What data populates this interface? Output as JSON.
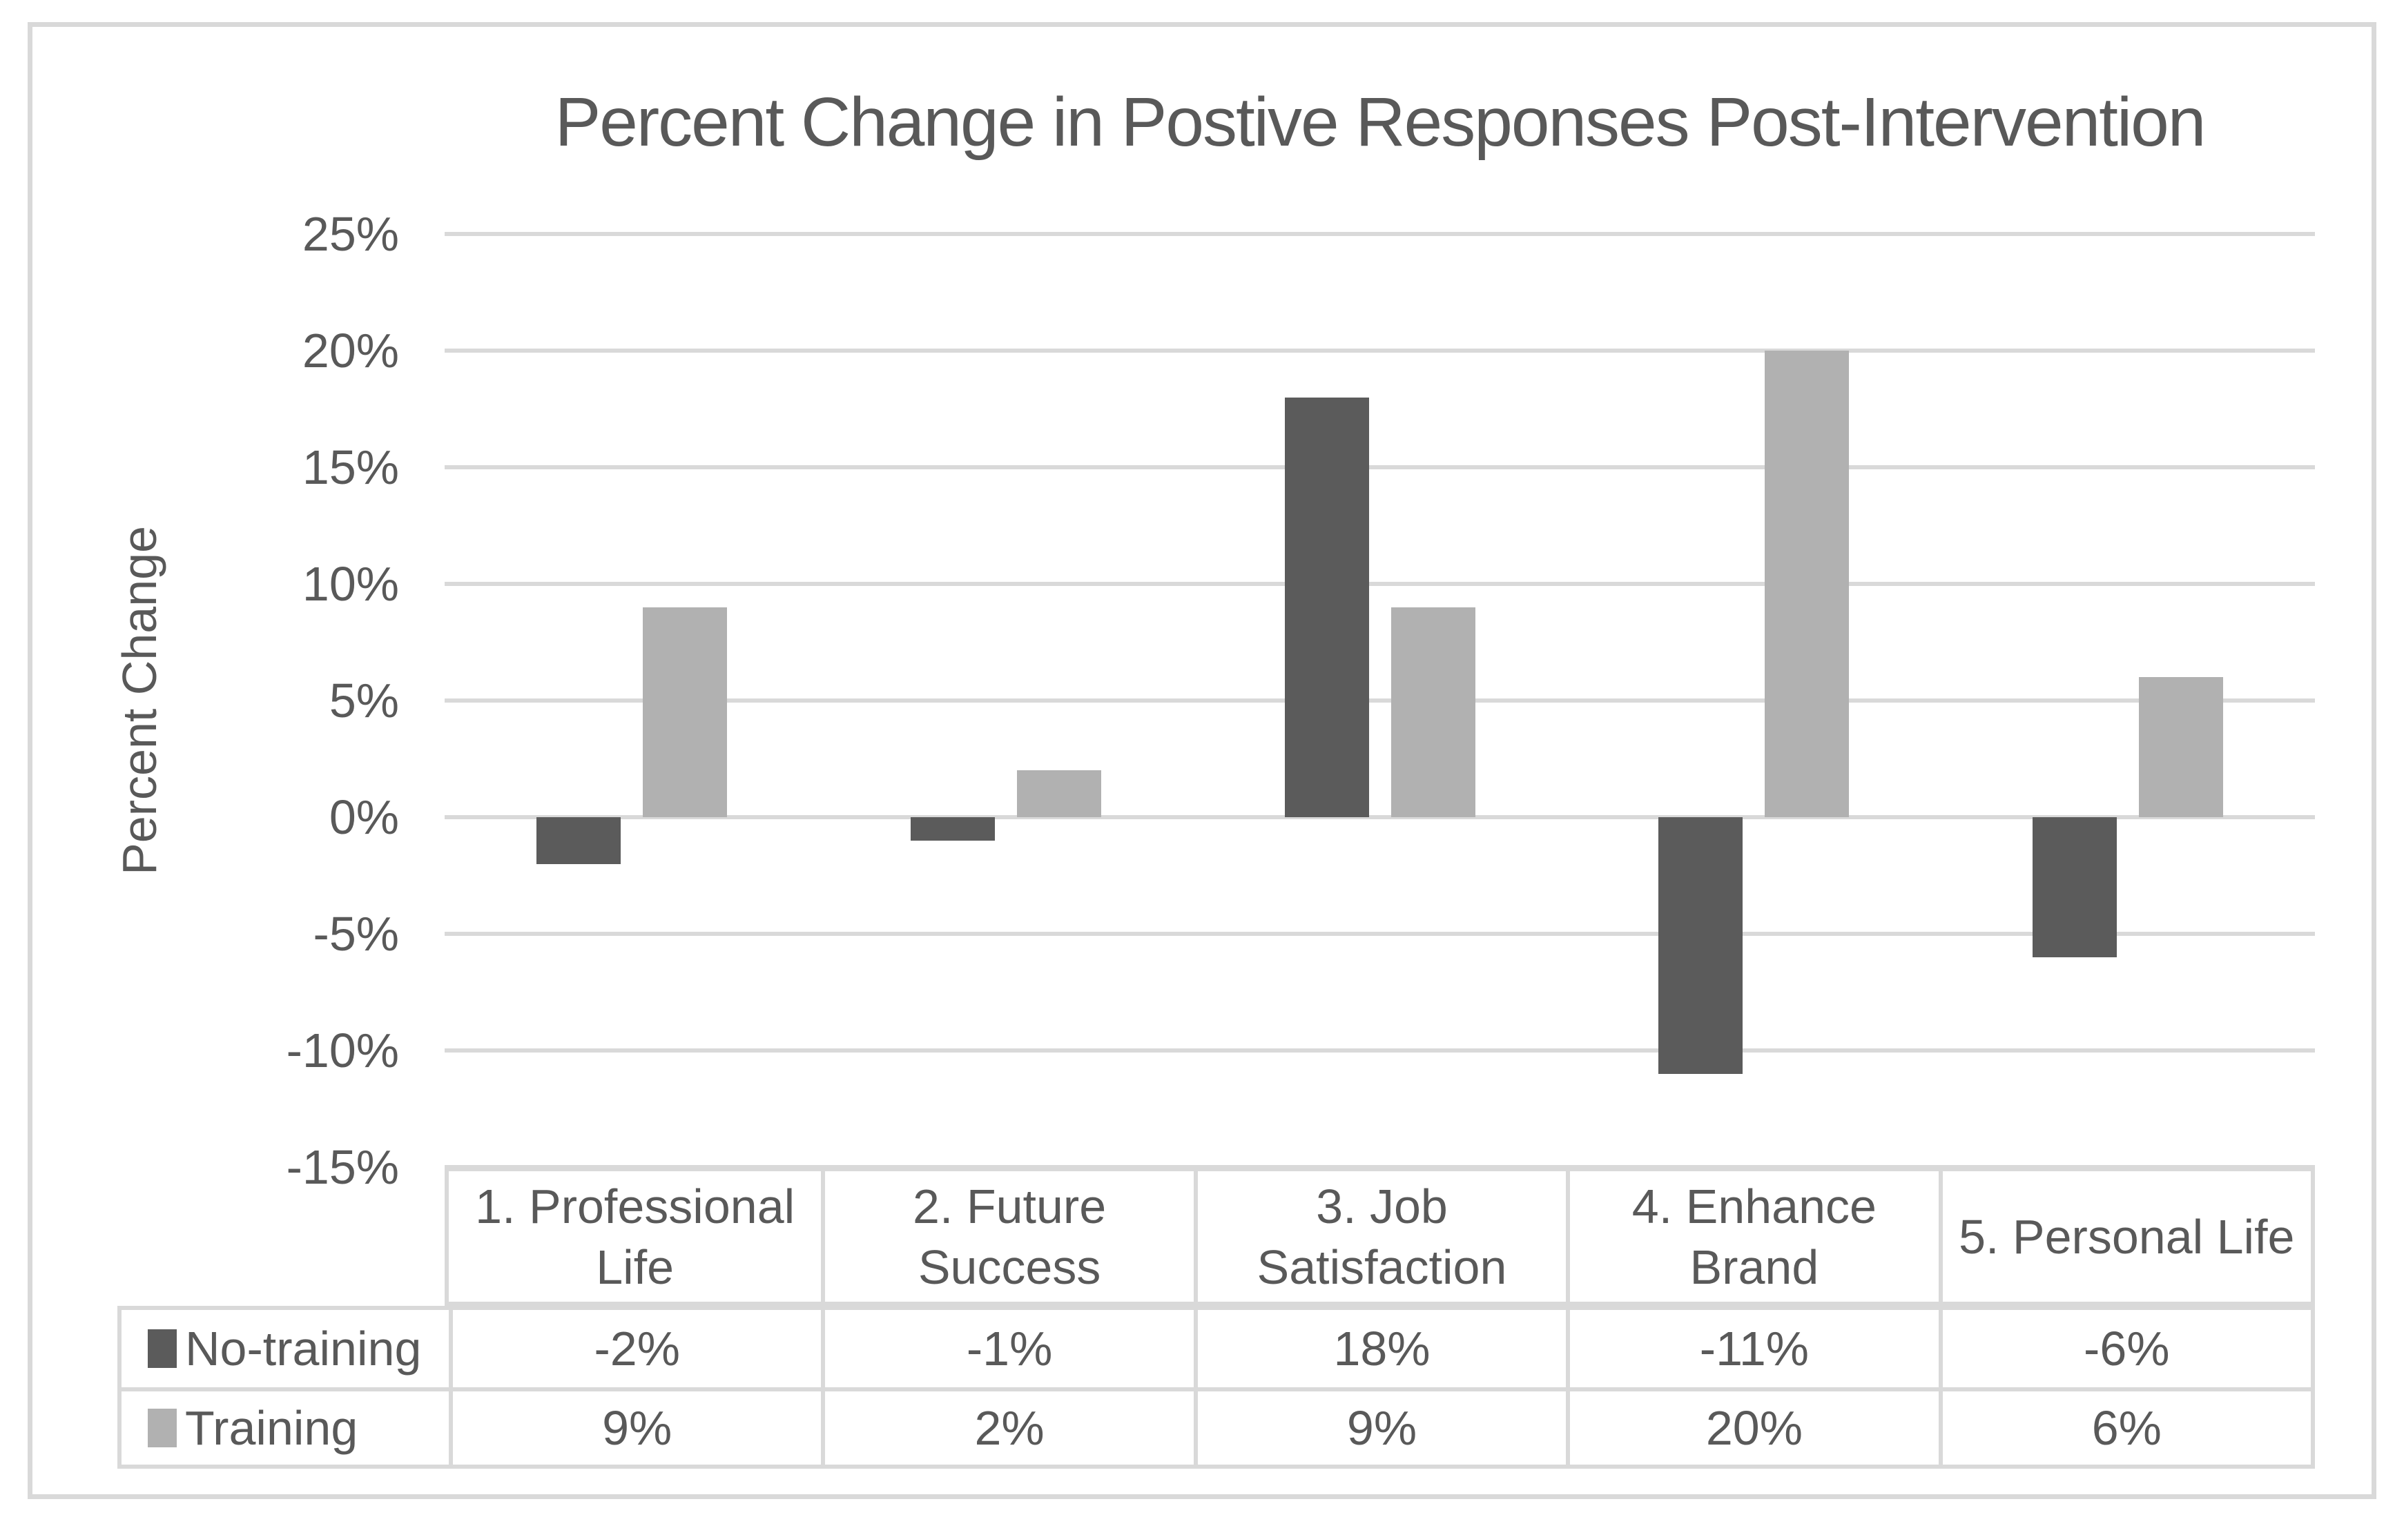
{
  "chart_data": {
    "type": "bar",
    "title": "Percent Change in Postive Responses Post-Intervention",
    "y_axis_title": "Percent Change",
    "xlabel": "",
    "ylabel": "Percent Change",
    "categories": [
      "1. Professional Life",
      "2. Future Success",
      "3. Job Satisfaction",
      "4. Enhance Brand",
      "5. Personal Life"
    ],
    "series": [
      {
        "name": "No-training",
        "color": "#5b5b5b",
        "values": [
          -2,
          -1,
          18,
          -11,
          -6
        ],
        "labels": [
          "-2%",
          "-1%",
          "18%",
          "-11%",
          "-6%"
        ]
      },
      {
        "name": "Training",
        "color": "#b1b1b1",
        "values": [
          9,
          2,
          9,
          20,
          6
        ],
        "labels": [
          "9%",
          "2%",
          "9%",
          "20%",
          "6%"
        ]
      }
    ],
    "y_ticks": [
      {
        "value": 25,
        "label": "25%"
      },
      {
        "value": 20,
        "label": "20%"
      },
      {
        "value": 15,
        "label": "15%"
      },
      {
        "value": 10,
        "label": "10%"
      },
      {
        "value": 5,
        "label": "5%"
      },
      {
        "value": 0,
        "label": "0%"
      },
      {
        "value": -5,
        "label": "-5%"
      },
      {
        "value": -10,
        "label": "-10%"
      },
      {
        "value": -15,
        "label": "-15%"
      }
    ],
    "ylim": [
      -15,
      25
    ],
    "grid": true,
    "legend_position": "data-table-left"
  },
  "colors": {
    "background": "#ffffff",
    "text": "#595959",
    "gridline": "#d9d9d9",
    "table_border": "#d9d9d9",
    "frame_border": "#d9d9d9"
  }
}
